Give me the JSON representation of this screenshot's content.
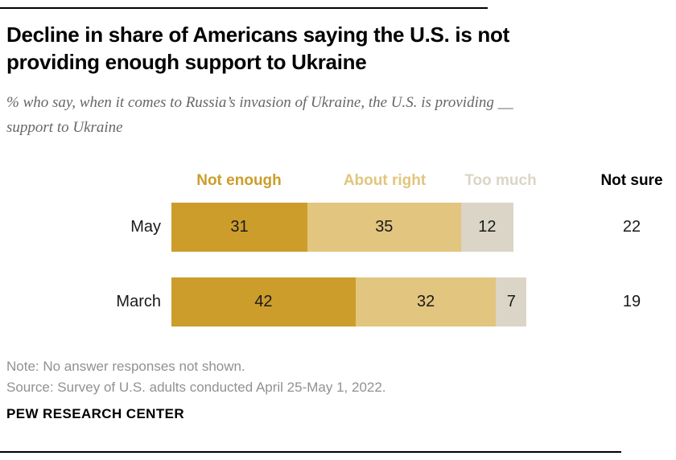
{
  "header": {
    "title": "Decline in share of Americans saying the U.S. is not providing enough support to Ukraine",
    "subtitle": "% who say, when it comes to Russia’s invasion of Ukraine, the U.S. is providing __ support to Ukraine"
  },
  "chart_data": {
    "type": "bar",
    "orientation": "horizontal",
    "stacked": true,
    "unit": "percent",
    "categories": [
      "May",
      "March"
    ],
    "series": [
      {
        "name": "Not enough",
        "color": "#CC9D2B",
        "values": [
          31,
          42
        ]
      },
      {
        "name": "About right",
        "color": "#E2C57E",
        "values": [
          35,
          32
        ]
      },
      {
        "name": "Too much",
        "color": "#DAD5C6",
        "values": [
          12,
          7
        ]
      }
    ],
    "side_column": {
      "name": "Not sure",
      "values": [
        22,
        19
      ]
    },
    "legend_position": "top",
    "value_labels": "inside",
    "axis": "none",
    "xlim": [
      0,
      100
    ]
  },
  "footer": {
    "note": "Note: No answer responses not shown.",
    "source": "Source: Survey of U.S. adults conducted April 25-May 1, 2022.",
    "brand": "PEW RESEARCH CENTER"
  },
  "colors": {
    "not_enough": "#CC9D2B",
    "about_right": "#E2C57E",
    "too_much": "#DAD5C6",
    "rule": "#000000",
    "subtitle_text": "#666666",
    "footnote_text": "#919191"
  }
}
